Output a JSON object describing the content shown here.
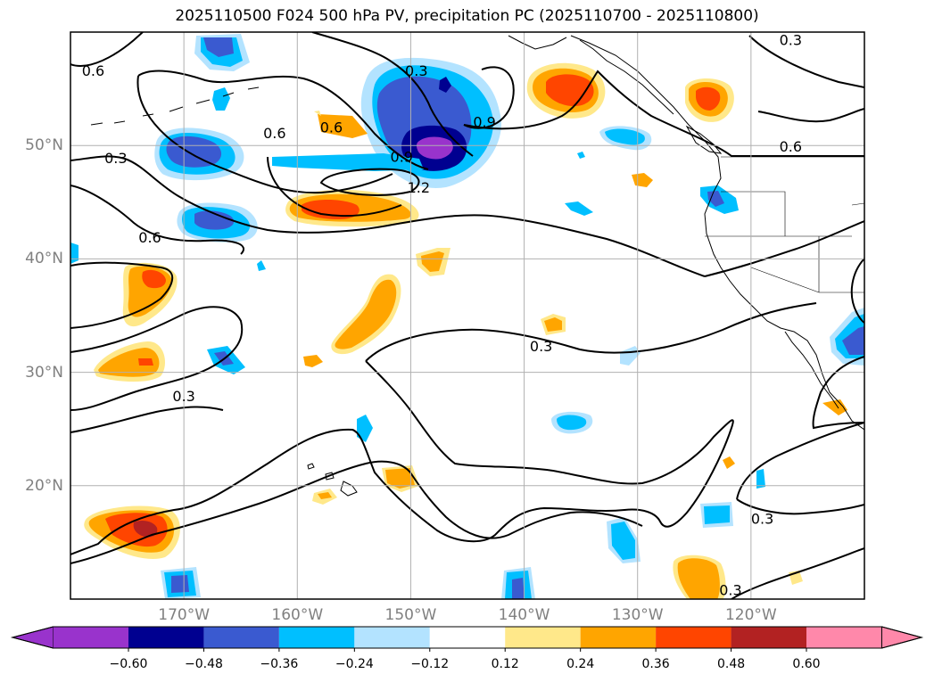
{
  "title": "2025110500 F024 500 hPa PV, precipitation PC (2025110700 - 2025110800)",
  "map": {
    "lon_range": [
      -180,
      -110
    ],
    "lat_range": [
      10,
      60
    ],
    "lon_ticks": [
      {
        "value": -170,
        "label": "170°W"
      },
      {
        "value": -160,
        "label": "160°W"
      },
      {
        "value": -150,
        "label": "150°W"
      },
      {
        "value": -140,
        "label": "140°W"
      },
      {
        "value": -130,
        "label": "130°W"
      },
      {
        "value": -120,
        "label": "120°W"
      }
    ],
    "lat_ticks": [
      {
        "value": 20,
        "label": "20°N"
      },
      {
        "value": 30,
        "label": "30°N"
      },
      {
        "value": 40,
        "label": "40°N"
      },
      {
        "value": 50,
        "label": "50°N"
      }
    ],
    "contour_labels": [
      {
        "text": "0.6",
        "lon": -178.0,
        "lat": 56.5
      },
      {
        "text": "0.3",
        "lon": -149.5,
        "lat": 56.5
      },
      {
        "text": "0.6",
        "lon": -162.0,
        "lat": 51.0
      },
      {
        "text": "0.6",
        "lon": -157.0,
        "lat": 51.5
      },
      {
        "text": "0.9",
        "lon": -143.5,
        "lat": 52.0
      },
      {
        "text": "0.3",
        "lon": -116.5,
        "lat": 59.2
      },
      {
        "text": "0.6",
        "lon": -116.5,
        "lat": 49.8
      },
      {
        "text": "0.3",
        "lon": -176.0,
        "lat": 48.8
      },
      {
        "text": "0.9",
        "lon": -150.8,
        "lat": 48.9
      },
      {
        "text": "1.2",
        "lon": -149.3,
        "lat": 46.2
      },
      {
        "text": "0.6",
        "lon": -173.0,
        "lat": 41.8
      },
      {
        "text": "0.3",
        "lon": -138.5,
        "lat": 32.2
      },
      {
        "text": "0.3",
        "lon": -170.0,
        "lat": 27.8
      },
      {
        "text": "0.3",
        "lon": -119.0,
        "lat": 17.0
      },
      {
        "text": "0.3",
        "lon": -121.8,
        "lat": 10.7
      }
    ]
  },
  "colorbar": {
    "ticks": [
      "−0.60",
      "−0.48",
      "−0.36",
      "−0.24",
      "−0.12",
      "0.12",
      "0.24",
      "0.36",
      "0.48",
      "0.60"
    ],
    "colors": [
      "#9933cc",
      "#000090",
      "#3a5ad0",
      "#00bfff",
      "#b3e3ff",
      "#ffffff",
      "#ffe88a",
      "#ffa500",
      "#ff4500",
      "#b22222",
      "#ff88aa",
      "#ff88aa"
    ],
    "under_color": "#9933cc",
    "over_color": "#ff88aa"
  },
  "colors": {
    "purple": "#9933cc",
    "navy": "#000090",
    "blue": "#3a5ad0",
    "sky": "#00bfff",
    "light_blue": "#b3e3ff",
    "light_yellow": "#ffe88a",
    "orange": "#ffa500",
    "orange_red": "#ff4500",
    "dark_red": "#b22222",
    "pink": "#ff88aa"
  }
}
